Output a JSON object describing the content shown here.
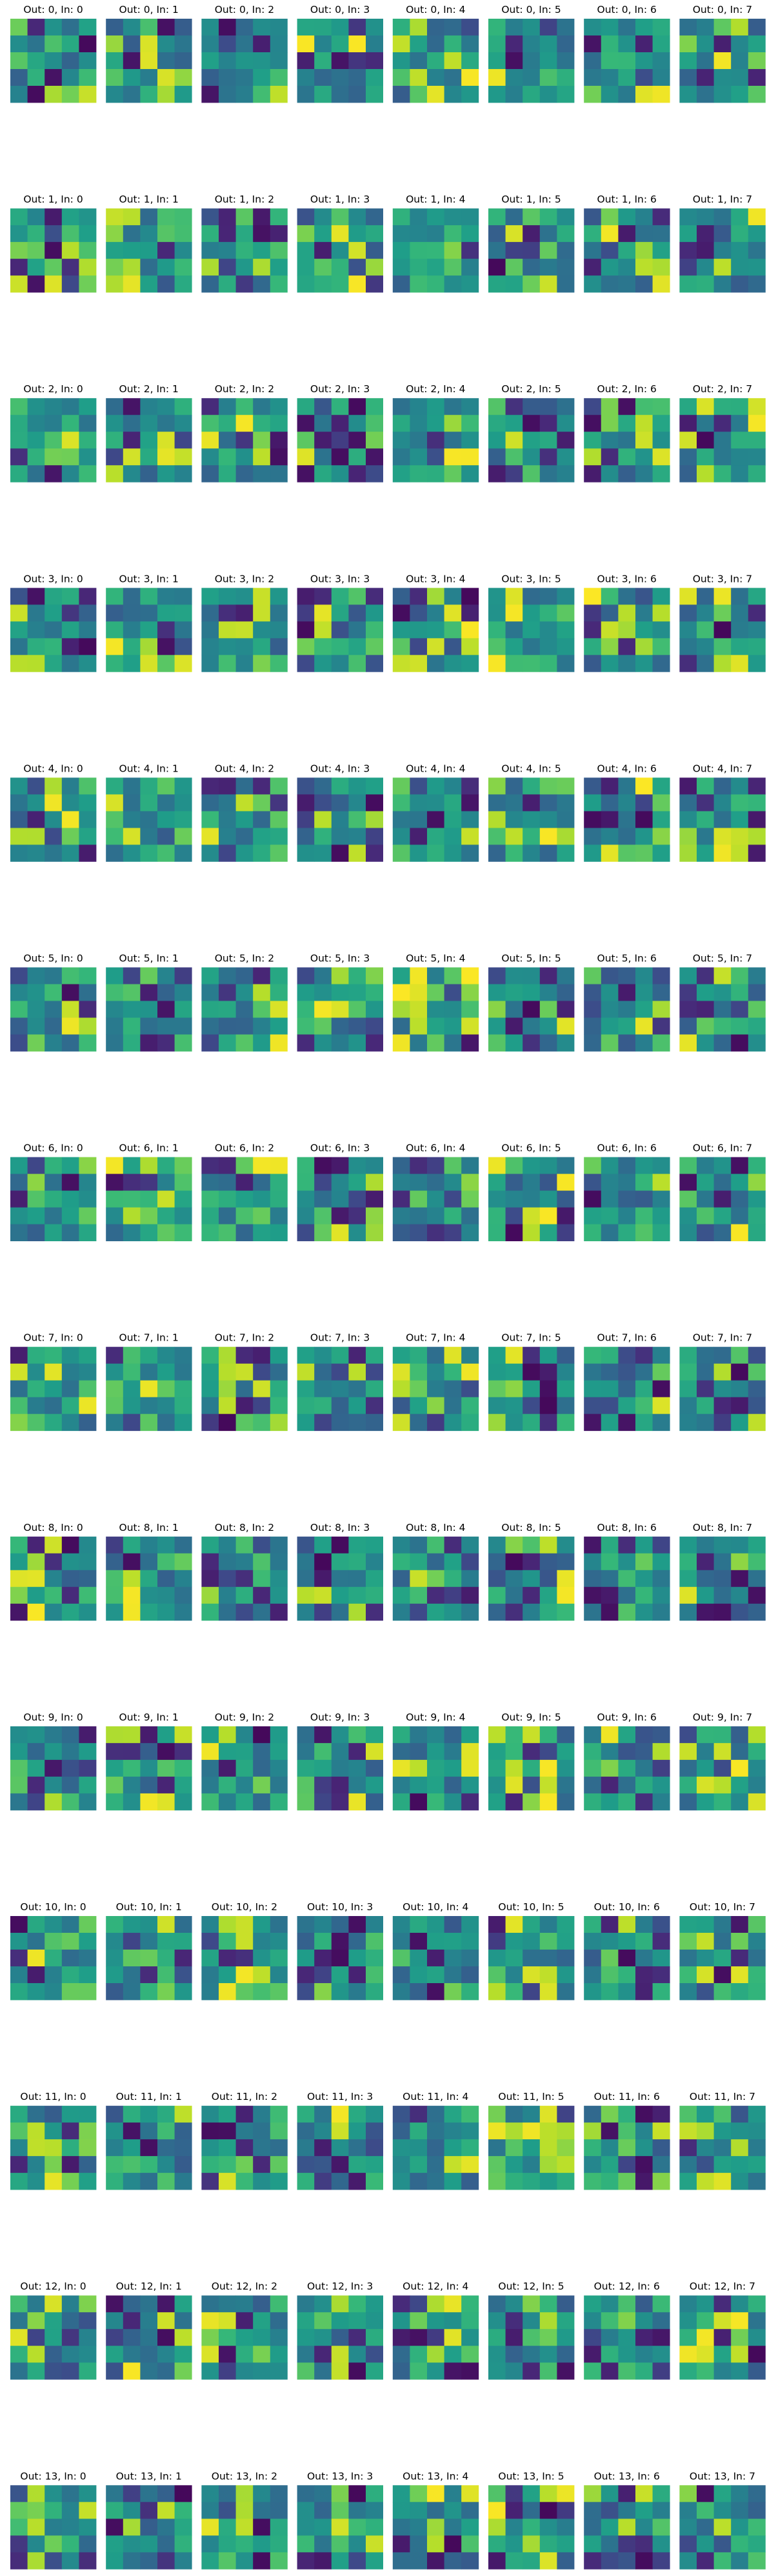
{
  "chart_data": {
    "type": "heatmap",
    "title": "",
    "layout": "grid of small heatmaps, one per (output channel, input channel) pair",
    "rows_label": "Out",
    "cols_label": "In",
    "out_channels": [
      0,
      1,
      2,
      3,
      4,
      5,
      6,
      7,
      8,
      9,
      10,
      11,
      12,
      13
    ],
    "in_channels": [
      0,
      1,
      2,
      3,
      4,
      5,
      6,
      7
    ],
    "title_template": "Out: {o}, In: {i}",
    "kernel_size": [
      5,
      5
    ],
    "colormap": "viridis",
    "value_range": [
      0,
      1
    ],
    "axes": "off",
    "note": "Cell values are normalized color levels (0 = dark purple, 1 = yellow) estimated from the image; exact per-cell values are approximations.",
    "palette": [
      "#440154",
      "#482878",
      "#3e4989",
      "#31688e",
      "#26828e",
      "#1f9e89",
      "#35b779",
      "#6ece58",
      "#b5de2b",
      "#fde725"
    ]
  }
}
